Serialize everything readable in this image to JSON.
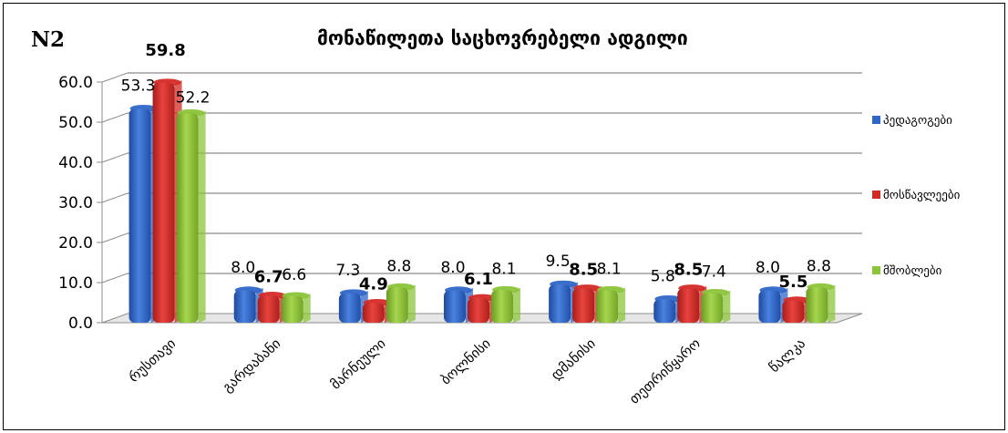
{
  "corner_label": "N2",
  "chart_data": {
    "type": "bar",
    "title": "მონაწილეთა საცხოვრებელი ადგილი",
    "xlabel": "",
    "ylabel": "",
    "ylim": [
      0,
      60
    ],
    "yticks": [
      "0.0",
      "10.0",
      "20.0",
      "30.0",
      "40.0",
      "50.0",
      "60.0"
    ],
    "grid": true,
    "legend_position": "right",
    "categories": [
      "რუსთავი",
      "გარდაბანი",
      "მარნეული",
      "ბოლნისი",
      "დმანისი",
      "თეთრიწყარო",
      "წალკა"
    ],
    "series": [
      {
        "name": "პედაგოგები",
        "color": "#2f66c8",
        "values": [
          53.3,
          8.0,
          7.3,
          8.0,
          9.5,
          5.8,
          8.0
        ]
      },
      {
        "name": "მოსწავლეები",
        "color": "#d42a26",
        "values": [
          59.8,
          6.7,
          4.9,
          6.1,
          8.5,
          8.5,
          5.5
        ]
      },
      {
        "name": "მშობლები",
        "color": "#8cc43a",
        "values": [
          52.2,
          6.6,
          8.8,
          8.1,
          8.1,
          7.4,
          8.8
        ]
      }
    ]
  }
}
